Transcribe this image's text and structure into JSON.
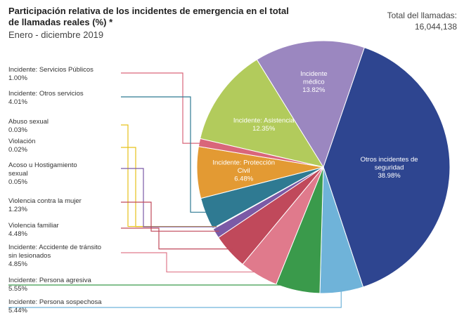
{
  "title": "Participación relativa de los incidentes de emergencia en el total de llamadas reales (%) *",
  "subtitle": "Enero - diciembre 2019",
  "total_label": "Total del llamadas:",
  "total_value": "16,044,138",
  "chart_data": {
    "type": "pie",
    "title": "Participación relativa de los incidentes de emergencia en el total de llamadas reales (%) *",
    "subtitle": "Enero - diciembre 2019",
    "slices": [
      {
        "label": "Otros incidentes de seguridad",
        "value": 38.98,
        "display": "38.98%",
        "color": "#2e4590"
      },
      {
        "label": "Incidente: Persona sospechosa",
        "value": 5.44,
        "display": "5.44%",
        "color": "#6fb3d9"
      },
      {
        "label": "Incidente: Persona agresiva",
        "value": 5.55,
        "display": "5.55%",
        "color": "#3a9a4b"
      },
      {
        "label": "Incidente: Accidente de tránsito sin lesionados",
        "value": 4.85,
        "display": "4.85%",
        "color": "#e07a8c"
      },
      {
        "label": "Violencia familiar",
        "value": 4.48,
        "display": "4.48%",
        "color": "#c0495b"
      },
      {
        "label": "Violencia contra la mujer",
        "value": 1.23,
        "display": "1.23%",
        "color": "#7b5aa6"
      },
      {
        "label": "Acoso u Hostigamiento sexual",
        "value": 0.05,
        "display": "0.05%",
        "color": "#c8c8c8"
      },
      {
        "label": "Violación",
        "value": 0.02,
        "display": "0.02%",
        "color": "#f0e040"
      },
      {
        "label": "Abuso sexual",
        "value": 0.03,
        "display": "0.03%",
        "color": "#f0e040"
      },
      {
        "label": "Incidente: Otros servicios",
        "value": 4.01,
        "display": "4.01%",
        "color": "#2f7a92"
      },
      {
        "label": "Incidente: Protección Civil",
        "value": 6.48,
        "display": "6.48%",
        "color": "#e39a33"
      },
      {
        "label": "Incidente: Servicios Públicos",
        "value": 1.0,
        "display": "1.00%",
        "color": "#d9667a"
      },
      {
        "label": "Incidente: Asistencia",
        "value": 12.35,
        "display": "12.35%",
        "color": "#b2cb5c"
      },
      {
        "label": "Incidente médico",
        "value": 13.82,
        "display": "13.82%",
        "color": "#9b87c0"
      }
    ],
    "in_slice_labels": [
      {
        "slice": 0,
        "lines": [
          "Otros incidentes de",
          "seguridad",
          "38.98%"
        ]
      },
      {
        "slice": 13,
        "lines": [
          "Incidente",
          "médico",
          "13.82%"
        ]
      },
      {
        "slice": 12,
        "lines": [
          "Incidente: Asistencia",
          "12.35%"
        ]
      },
      {
        "slice": 10,
        "lines": [
          "Incidente: Protección",
          "Civil",
          "6.48%"
        ]
      }
    ],
    "side_labels": [
      {
        "lines": [
          "Incidente: Servicios Públicos",
          "1.00%"
        ],
        "color": "#d9667a",
        "slice": 11
      },
      {
        "lines": [
          "Incidente: Otros servicios",
          "4.01%"
        ],
        "color": "#2f7a92",
        "slice": 9
      },
      {
        "lines": [
          "Abuso sexual",
          "0.03%"
        ],
        "color": "#e6c21a",
        "slice": 8
      },
      {
        "lines": [
          "Violación",
          "0.02%"
        ],
        "color": "#e6c21a",
        "slice": 7
      },
      {
        "lines": [
          "Acoso u Hostigamiento",
          "sexual",
          "0.05%"
        ],
        "color": "#7b5aa6",
        "slice": 6
      },
      {
        "lines": [
          "Violencia contra la mujer",
          "1.23%"
        ],
        "color": "#c0495b",
        "slice": 5
      },
      {
        "lines": [
          "Violencia familiar",
          "4.48%"
        ],
        "color": "#c0495b",
        "slice": 4
      },
      {
        "lines": [
          "Incidente: Accidente de tránsito",
          "sin lesionados",
          "4.85%"
        ],
        "color": "#e07a8c",
        "slice": 3
      },
      {
        "lines": [
          "Incidente: Persona agresiva",
          "5.55%"
        ],
        "color": "#3a9a4b",
        "slice": 2
      },
      {
        "lines": [
          "Incidente: Persona sospechosa",
          "5.44%"
        ],
        "color": "#6fb3d9",
        "slice": 1
      }
    ]
  }
}
